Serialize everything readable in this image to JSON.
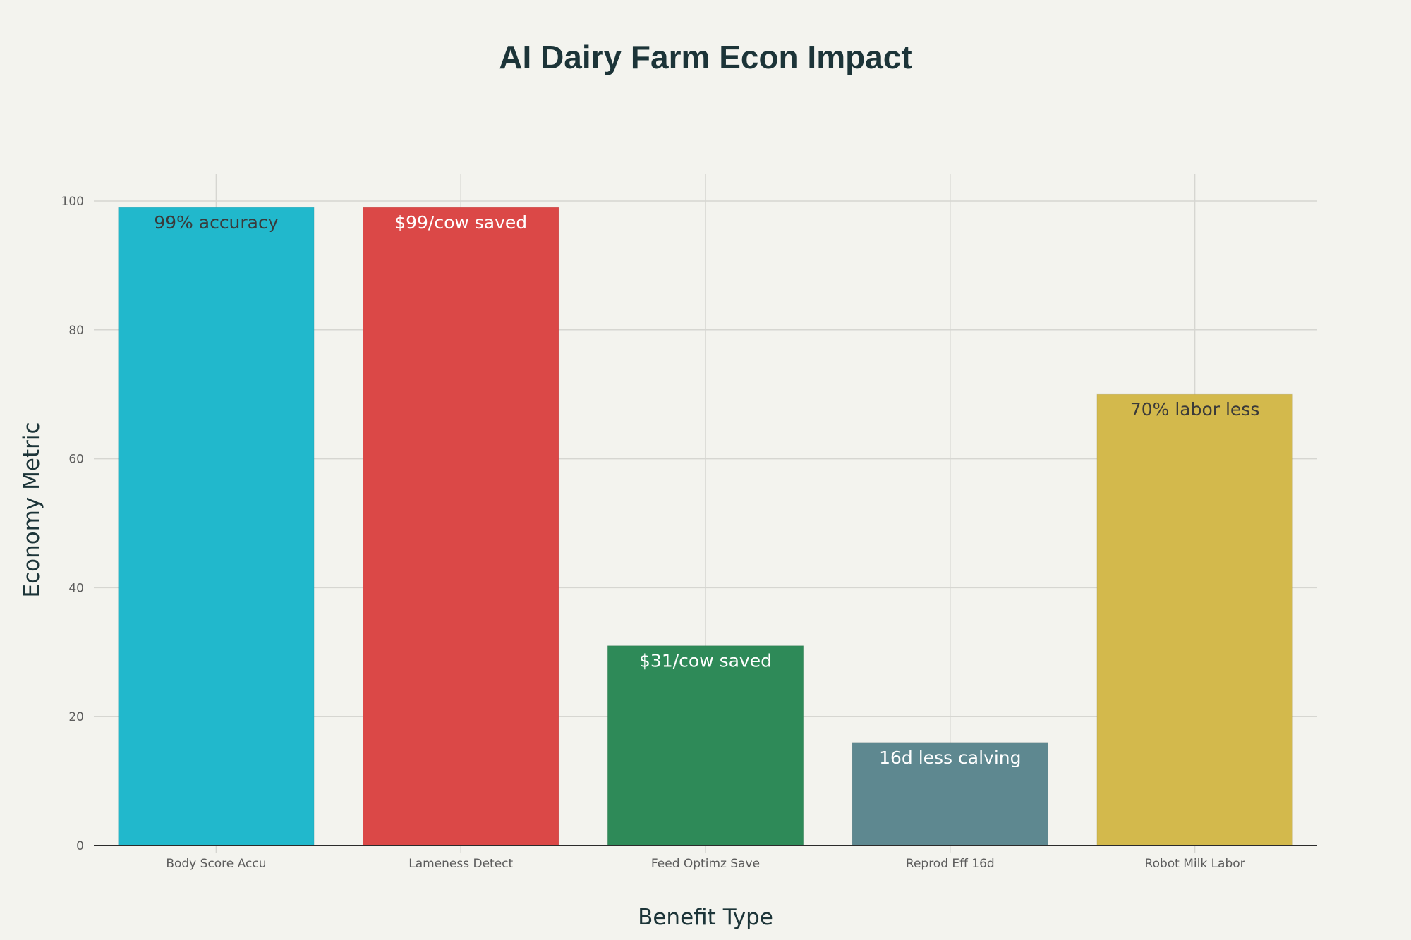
{
  "chart_data": {
    "type": "bar",
    "title": "AI Dairy Farm Econ Impact",
    "xlabel": "Benefit Type",
    "ylabel": "Economy Metric",
    "ylim": [
      0,
      100
    ],
    "yticks": [
      0,
      20,
      40,
      60,
      80,
      100
    ],
    "grid": true,
    "categories": [
      "Body Score Accu",
      "Lameness Detect",
      "Feed Optimz Save",
      "Reprod Eff 16d",
      "Robot Milk Labor"
    ],
    "values": [
      99,
      99,
      31,
      16,
      70
    ],
    "data_labels": [
      "99% accuracy",
      "$99/cow saved",
      "$31/cow saved",
      "16d less calving",
      "70% labor less"
    ],
    "colors": [
      "#21b8cc",
      "#db4847",
      "#2e8a58",
      "#5e8890",
      "#d3b94c"
    ],
    "label_colors": [
      "#3a3a3a",
      "#ffffff",
      "#ffffff",
      "#ffffff",
      "#3a3a3a"
    ]
  }
}
